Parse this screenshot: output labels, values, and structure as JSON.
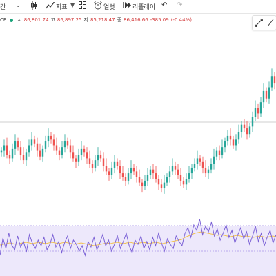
{
  "toolbar": {
    "period_label": "간",
    "compare_glyph": "⌄",
    "indicator_label": "지표",
    "alert_label": "얼럿",
    "replay_label": "리플레이"
  },
  "quote": {
    "symbol_suffix": "CE",
    "open_label": "시",
    "open_value": "86,801.74",
    "high_label": "고",
    "high_value": "86,897.25",
    "low_label": "저",
    "low_value": "85,218.47",
    "close_label": "종",
    "close_value": "86,416.66",
    "change": "-385.09",
    "change_pct": "(-0.44%)"
  },
  "colors": {
    "up": "#26a69a",
    "down": "#ef5350",
    "osc_line": "#7b61d6",
    "osc_signal": "#f2c14e",
    "osc_band": "#ede8fb",
    "status_dot": "#1aa37a"
  },
  "chart_data": {
    "type": "candlestick",
    "series": [
      {
        "name": "price",
        "close": [
          52,
          55,
          50,
          48,
          53,
          57,
          54,
          50,
          47,
          51,
          55,
          58,
          56,
          52,
          49,
          53,
          57,
          60,
          58,
          55,
          52,
          50,
          54,
          57,
          55,
          51,
          48,
          46,
          50,
          53,
          51,
          48,
          45,
          43,
          47,
          50,
          48,
          44,
          41,
          39,
          43,
          46,
          44,
          40,
          38,
          36,
          40,
          43,
          41,
          38,
          35,
          33,
          36,
          39,
          42,
          40,
          37,
          34,
          32,
          35,
          38,
          41,
          44,
          42,
          39,
          36,
          34,
          37,
          40,
          43,
          45,
          48,
          46,
          43,
          40,
          42,
          45,
          49,
          52,
          50,
          54,
          57,
          60,
          58,
          55,
          58,
          62,
          66,
          64,
          61,
          65,
          70,
          75,
          72,
          78,
          84,
          80,
          86,
          92,
          88
        ]
      },
      {
        "name": "oscillator",
        "values": [
          30,
          55,
          40,
          62,
          45,
          38,
          58,
          42,
          50,
          35,
          60,
          48,
          40,
          52,
          44,
          56,
          38,
          46,
          60,
          42,
          50,
          34,
          48,
          58,
          40,
          52,
          46,
          36,
          44,
          30,
          50,
          42,
          56,
          38,
          48,
          60,
          44,
          52,
          36,
          46,
          58,
          40,
          50,
          62,
          44,
          34,
          52,
          46,
          58,
          40,
          50,
          38,
          56,
          44,
          62,
          48,
          36,
          54,
          46,
          40,
          58,
          50,
          44,
          62,
          70,
          56,
          74,
          66,
          82,
          60,
          72,
          64,
          78,
          58,
          68,
          52,
          62,
          74,
          56,
          66,
          48,
          60,
          70,
          54,
          64,
          46,
          58,
          72,
          50,
          62,
          44,
          56,
          66,
          48,
          60
        ]
      },
      {
        "name": "oscillator-signal",
        "values": [
          45,
          46,
          47,
          48,
          47,
          46,
          47,
          48,
          49,
          48,
          47,
          48,
          49,
          48,
          47,
          48,
          49,
          48,
          47,
          48,
          49,
          48,
          47,
          46,
          47,
          48,
          47,
          46,
          45,
          44,
          45,
          46,
          47,
          48,
          47,
          48,
          49,
          48,
          47,
          48,
          49,
          48,
          47,
          48,
          49,
          48,
          47,
          48,
          49,
          48,
          47,
          48,
          49,
          50,
          51,
          52,
          53,
          56,
          58,
          60,
          62,
          63,
          64,
          63,
          62,
          61,
          60,
          59,
          60,
          59,
          58,
          57,
          58,
          59,
          58,
          57,
          58,
          57,
          56,
          57,
          58,
          57,
          56,
          57,
          58,
          57
        ]
      }
    ]
  }
}
